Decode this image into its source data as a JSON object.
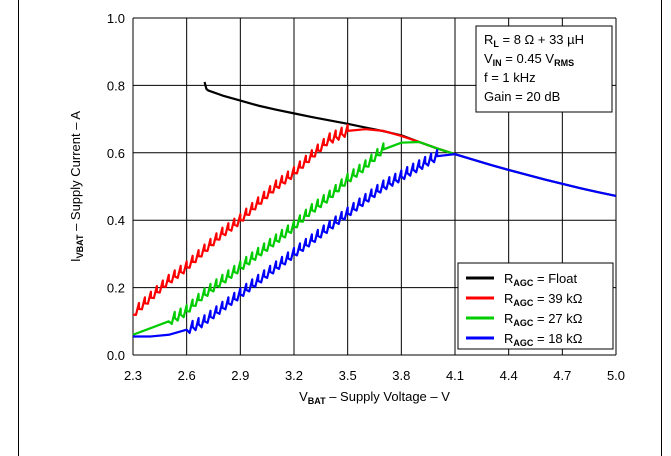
{
  "chart_data": {
    "type": "line",
    "xlabel": {
      "main": "V",
      "sub": "BAT",
      "rest": " – Supply Voltage – V"
    },
    "ylabel": {
      "main": "I",
      "sub": "VBAT",
      "rest": " – Supply Current – A"
    },
    "xlim": [
      2.3,
      5.0
    ],
    "ylim": [
      0.0,
      1.0
    ],
    "x_ticks": [
      "2.3",
      "2.6",
      "2.9",
      "3.2",
      "3.5",
      "3.8",
      "4.1",
      "4.4",
      "4.7",
      "5.0"
    ],
    "y_ticks": [
      "0.0",
      "0.2",
      "0.4",
      "0.6",
      "0.8",
      "1.0"
    ],
    "grid": true,
    "conditions": [
      {
        "main": "R",
        "sub": "L",
        "rest": " = 8 Ω + 33 µH"
      },
      {
        "main": "V",
        "sub": "IN",
        "rest": " = 0.45 V",
        "sub2": "RMS"
      },
      {
        "main": "f = 1 kHz"
      },
      {
        "main": "Gain = 20 dB"
      }
    ],
    "legend_position": "bottom-right",
    "series": [
      {
        "name": {
          "main": "R",
          "sub": "AGC",
          "rest": " = Float"
        },
        "color": "#000000",
        "x": [
          2.7,
          2.71,
          2.72,
          2.8,
          2.9,
          3.0,
          3.1,
          3.2,
          3.3,
          3.4,
          3.5,
          3.6,
          3.7,
          3.8,
          3.9,
          4.0,
          4.1,
          4.2,
          4.3,
          4.4,
          4.5,
          4.6,
          4.7,
          4.8,
          4.9,
          5.0
        ],
        "y": [
          0.81,
          0.79,
          0.785,
          0.77,
          0.755,
          0.74,
          0.728,
          0.717,
          0.706,
          0.696,
          0.686,
          0.675,
          0.664,
          0.652,
          0.632,
          0.613,
          0.596,
          0.58,
          0.564,
          0.549,
          0.535,
          0.521,
          0.508,
          0.495,
          0.483,
          0.472
        ]
      },
      {
        "name": {
          "main": "R",
          "sub": "AGC",
          "rest": " = 39 kΩ"
        },
        "color": "#ff0000",
        "x": [
          2.3,
          2.4,
          2.5,
          2.6,
          2.7,
          2.8,
          2.9,
          3.0,
          3.1,
          3.2,
          3.3,
          3.4,
          3.5,
          3.6,
          3.7,
          3.8,
          3.9,
          4.0,
          4.1
        ],
        "y": [
          0.12,
          0.17,
          0.22,
          0.26,
          0.31,
          0.36,
          0.4,
          0.45,
          0.5,
          0.54,
          0.59,
          0.64,
          0.665,
          0.67,
          0.665,
          0.65,
          0.632,
          0.613,
          0.596
        ]
      },
      {
        "name": {
          "main": "R",
          "sub": "AGC",
          "rest": " = 27 kΩ"
        },
        "color": "#00cc00",
        "x": [
          2.3,
          2.4,
          2.5,
          2.6,
          2.7,
          2.8,
          2.9,
          3.0,
          3.1,
          3.2,
          3.3,
          3.4,
          3.5,
          3.6,
          3.7,
          3.8,
          3.9,
          4.0,
          4.1
        ],
        "y": [
          0.06,
          0.08,
          0.1,
          0.13,
          0.18,
          0.22,
          0.26,
          0.3,
          0.34,
          0.38,
          0.43,
          0.47,
          0.52,
          0.56,
          0.61,
          0.63,
          0.632,
          0.613,
          0.596
        ]
      },
      {
        "name": {
          "main": "R",
          "sub": "AGC",
          "rest": " = 18 kΩ"
        },
        "color": "#0000ff",
        "x": [
          2.3,
          2.4,
          2.5,
          2.6,
          2.7,
          2.8,
          2.9,
          3.0,
          3.1,
          3.2,
          3.3,
          3.4,
          3.5,
          3.6,
          3.7,
          3.8,
          3.9,
          4.0,
          4.1,
          4.2,
          4.3,
          4.4,
          4.5,
          4.6,
          4.7,
          4.8,
          4.9,
          5.0
        ],
        "y": [
          0.055,
          0.055,
          0.06,
          0.075,
          0.1,
          0.14,
          0.18,
          0.22,
          0.26,
          0.3,
          0.34,
          0.38,
          0.42,
          0.46,
          0.5,
          0.53,
          0.56,
          0.59,
          0.596,
          0.58,
          0.564,
          0.549,
          0.535,
          0.521,
          0.508,
          0.495,
          0.483,
          0.472
        ]
      }
    ]
  }
}
